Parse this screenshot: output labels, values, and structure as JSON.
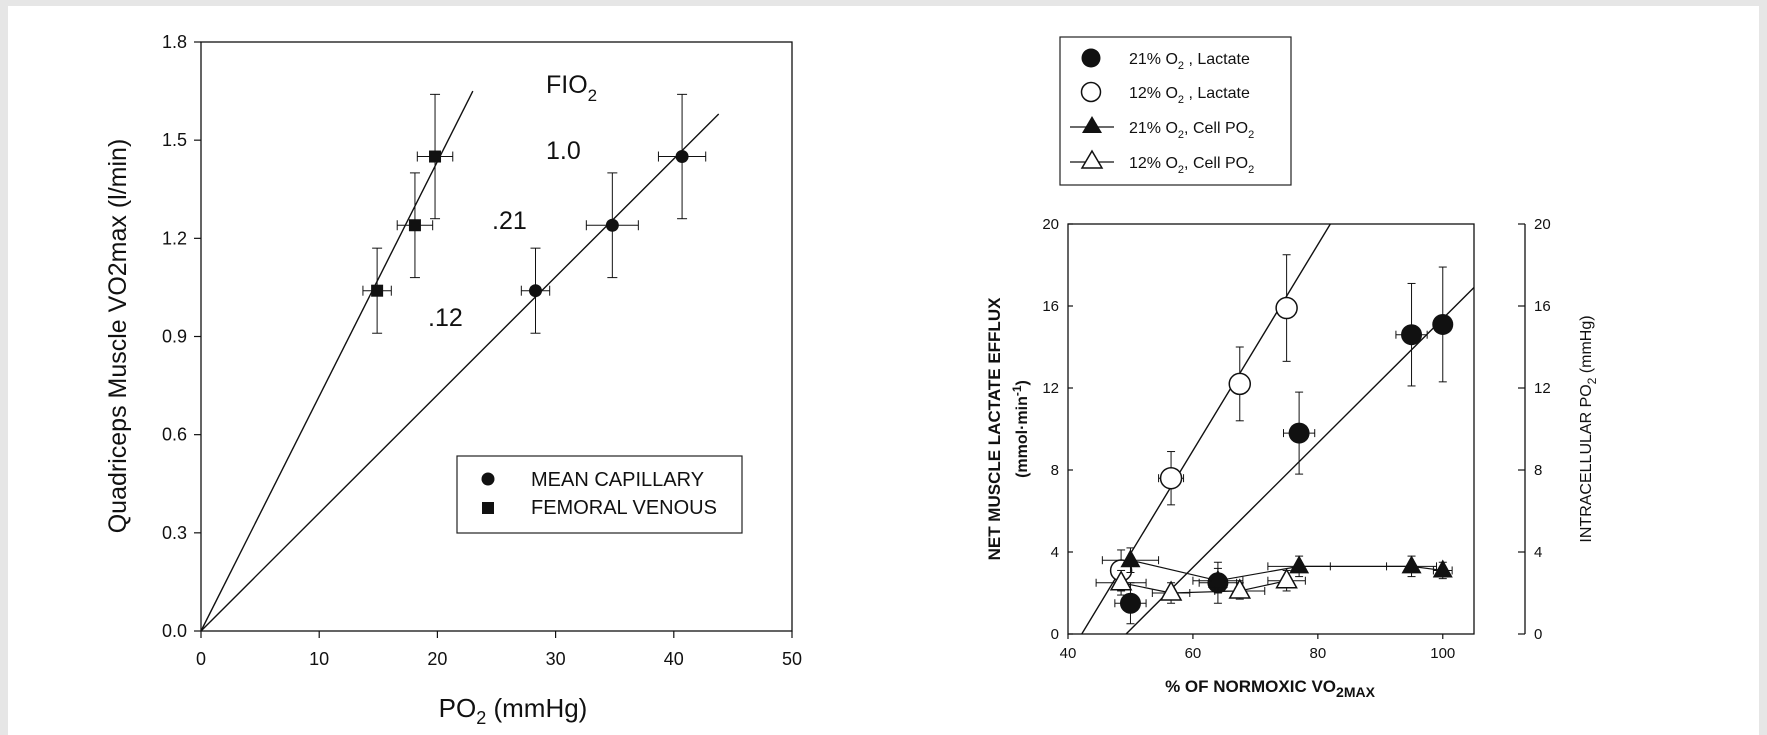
{
  "chart_data": [
    {
      "type": "scatter",
      "xlabel": "PO",
      "xlabel_sub": "2",
      "xlabel_unit": " (mmHg)",
      "ylabel": "Quadriceps Muscle VO2max (l/min)",
      "xlim": [
        0,
        50
      ],
      "ylim": [
        0,
        1.8
      ],
      "xticks": [
        "0",
        "10",
        "20",
        "30",
        "40",
        "50"
      ],
      "yticks": [
        "0.0",
        "0.3",
        "0.6",
        "0.9",
        "1.2",
        "1.5",
        "1.8"
      ],
      "grid": false,
      "legend_position": "lower-right",
      "annotations": {
        "fio2_main": "FIO",
        "fio2_sub": "2",
        "label_10": "1.0",
        "label_21": ".21",
        "label_12": ".12"
      },
      "series": [
        {
          "name": "MEAN CAPILLARY",
          "marker": "circle",
          "x": [
            28.3,
            34.8,
            40.7
          ],
          "y": [
            1.04,
            1.24,
            1.45
          ],
          "x_err": [
            1.2,
            2.2,
            2.0
          ],
          "y_err": [
            0.13,
            0.16,
            0.19
          ]
        },
        {
          "name": "FEMORAL VENOUS",
          "marker": "square",
          "x": [
            14.9,
            18.1,
            19.8
          ],
          "y": [
            1.04,
            1.24,
            1.45
          ],
          "x_err": [
            1.2,
            1.5,
            1.5
          ],
          "y_err": [
            0.13,
            0.16,
            0.19
          ]
        }
      ],
      "fit_lines": [
        {
          "x": [
            0,
            23.0
          ],
          "y": [
            0,
            1.65
          ]
        },
        {
          "x": [
            0,
            43.8
          ],
          "y": [
            0,
            1.58
          ]
        }
      ]
    },
    {
      "type": "scatter",
      "xlabel": "% OF NORMOXIC VO",
      "xlabel_sub": "2MAX",
      "ylabel_left": "NET MUSCLE LACTATE EFFLUX",
      "ylabel_left_unit": "(mmol·min",
      "ylabel_left_sup": "-1",
      "ylabel_left_close": ")",
      "ylabel_right": "INTRACELLULAR PO",
      "ylabel_right_sub": "2",
      "ylabel_right_unit": " (mmHg)",
      "xlim": [
        40,
        105
      ],
      "ylim": [
        0,
        20
      ],
      "xticks": [
        "40",
        "60",
        "80",
        "100"
      ],
      "yticks": [
        "0",
        "4",
        "8",
        "12",
        "16",
        "20"
      ],
      "yticks_right": [
        "0",
        "4",
        "8",
        "12",
        "16",
        "20"
      ],
      "grid": false,
      "legend_position": "top-left",
      "legend_entries": [
        {
          "pre": "21% O",
          "sub": "2",
          "post": " , Lactate"
        },
        {
          "pre": "12% O",
          "sub": "2",
          "post": " , Lactate"
        },
        {
          "pre": "21% O",
          "sub": "2",
          "post": ", Cell PO",
          "sub2": "2"
        },
        {
          "pre": "12% O",
          "sub": "2",
          "post": ", Cell PO",
          "sub2": "2"
        }
      ],
      "series": [
        {
          "name": "21% O2 , Lactate",
          "marker": "circle-filled",
          "x": [
            50,
            64,
            77,
            95,
            100
          ],
          "y": [
            1.5,
            2.5,
            9.8,
            14.6,
            15.1
          ],
          "x_err": [
            2.5,
            3,
            2.5,
            2.5,
            1
          ],
          "y_err": [
            1,
            1,
            2,
            2.5,
            2.8
          ]
        },
        {
          "name": "12% O2 , Lactate",
          "marker": "circle-open",
          "x": [
            48.5,
            56.5,
            67.5,
            75
          ],
          "y": [
            3.1,
            7.6,
            12.2,
            15.9
          ],
          "x_err": [
            1,
            2,
            1.5,
            1.5
          ],
          "y_err": [
            1,
            1.3,
            1.8,
            2.6
          ]
        },
        {
          "name": "21% O2, Cell PO2",
          "marker": "triangle-filled",
          "x": [
            50,
            64,
            77,
            95,
            100
          ],
          "y": [
            3.6,
            2.6,
            3.3,
            3.3,
            3.1
          ],
          "x_err": [
            4.5,
            4,
            5,
            4,
            1.5
          ],
          "y_err": [
            0.6,
            0.6,
            0.5,
            0.5,
            0.4
          ]
        },
        {
          "name": "12% O2, Cell PO2",
          "marker": "triangle-open",
          "x": [
            48.5,
            56.5,
            67.5,
            75
          ],
          "y": [
            2.5,
            2.0,
            2.1,
            2.6
          ],
          "x_err": [
            4,
            3,
            4,
            3
          ],
          "y_err": [
            0.6,
            0.5,
            0.4,
            0.5
          ]
        }
      ],
      "fit_lines": [
        {
          "x": [
            42.2,
            82.0
          ],
          "y": [
            0,
            20
          ]
        },
        {
          "x": [
            49.3,
            105
          ],
          "y": [
            0,
            16.9
          ]
        }
      ]
    }
  ]
}
